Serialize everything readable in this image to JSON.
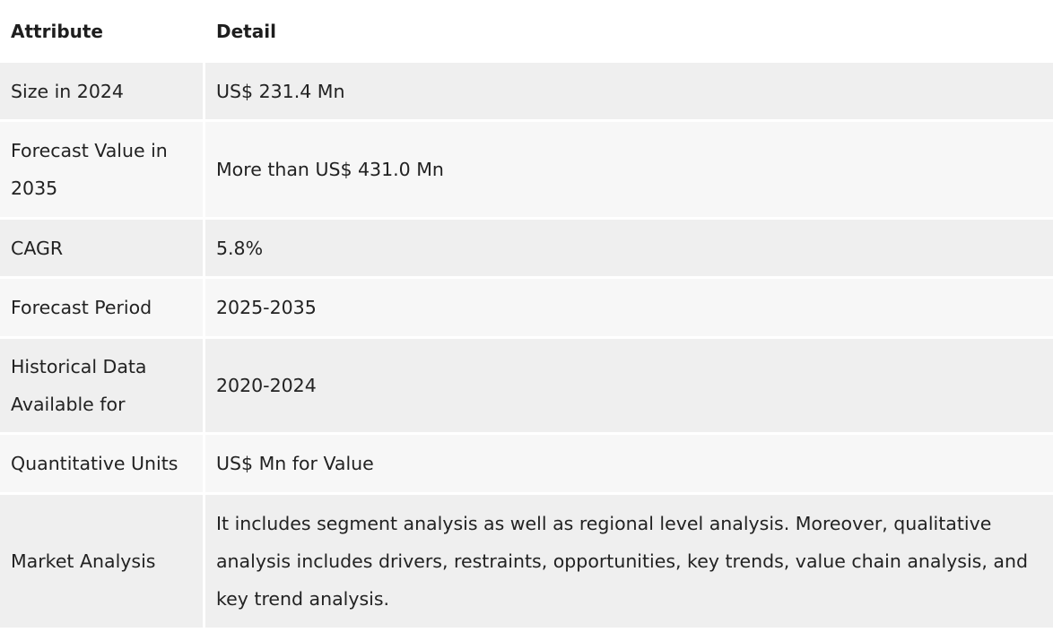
{
  "table": {
    "headers": {
      "attribute": "Attribute",
      "detail": "Detail"
    },
    "rows": [
      {
        "attribute": "Size in 2024",
        "detail": "US$ 231.4 Mn"
      },
      {
        "attribute": "Forecast Value in 2035",
        "detail": "More than US$ 431.0 Mn"
      },
      {
        "attribute": "CAGR",
        "detail": "5.8%"
      },
      {
        "attribute": "Forecast Period",
        "detail": "2025-2035"
      },
      {
        "attribute": "Historical Data Available for",
        "detail": "2020-2024"
      },
      {
        "attribute": "Quantitative Units",
        "detail": "US$ Mn for Value"
      },
      {
        "attribute": "Market Analysis",
        "detail": "It includes segment analysis as well as regional level analysis. Moreover, qualitative analysis includes drivers, restraints, opportunities, key trends, value chain analysis, and key trend analysis."
      }
    ]
  }
}
